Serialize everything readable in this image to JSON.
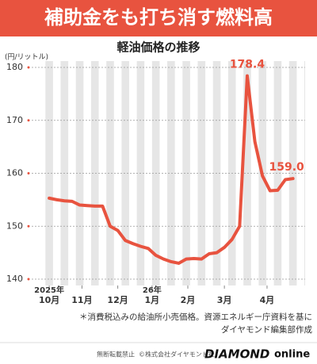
{
  "chart_data": {
    "type": "line",
    "title": "補助金をも打ち消す燃料高",
    "subtitle": "軽油価格の推移",
    "y_label": "(円/リットル)",
    "x": [
      0,
      1,
      2,
      3,
      4,
      5,
      6,
      7,
      8,
      9,
      10,
      11,
      12,
      13,
      14,
      15,
      16,
      17,
      18,
      19,
      20,
      21,
      22,
      23,
      24,
      25,
      26,
      27,
      28,
      29,
      30,
      31,
      32
    ],
    "values": [
      155.3,
      155.0,
      154.8,
      154.7,
      154.0,
      153.9,
      153.8,
      153.8,
      150.0,
      149.2,
      147.3,
      146.7,
      146.2,
      145.8,
      144.5,
      143.8,
      143.3,
      143.0,
      143.8,
      143.9,
      143.8,
      144.8,
      145.0,
      146.0,
      147.5,
      150.0,
      178.4,
      166.0,
      159.5,
      156.7,
      156.8,
      158.8,
      159.0
    ],
    "value_labels": [
      null,
      null,
      null,
      null,
      null,
      null,
      null,
      null,
      null,
      null,
      null,
      null,
      null,
      null,
      null,
      null,
      null,
      null,
      null,
      null,
      null,
      null,
      null,
      null,
      null,
      null,
      "178.4",
      null,
      null,
      null,
      null,
      null,
      "159.0"
    ],
    "color": "#e8533f",
    "xlim": [
      -2.3,
      33.6
    ],
    "xticks": [
      {
        "value": 0,
        "label": "10月"
      },
      {
        "value": 4.3,
        "label": "11月"
      },
      {
        "value": 9,
        "label": "12月"
      },
      {
        "value": 13.5,
        "label": "1月"
      },
      {
        "value": 18.2,
        "label": "2月"
      },
      {
        "value": 23,
        "label": "3月"
      },
      {
        "value": 28.6,
        "label": "4月"
      }
    ],
    "annotations": [
      "2025年",
      "26年"
    ],
    "ylim": [
      140,
      180
    ],
    "yticks": [
      140,
      150,
      160,
      170,
      180
    ],
    "grid": true,
    "notes": [
      "＊消費税込みの給油所小売価格。資源エネルギー庁資料を基に",
      "ダイヤモンド編集部作成"
    ],
    "footer": {
      "rights": "無断転載禁止",
      "copyright": "©株式会社ダイヤモンド社",
      "brand": "DIAMOND",
      "brand_suffix": "online"
    }
  }
}
